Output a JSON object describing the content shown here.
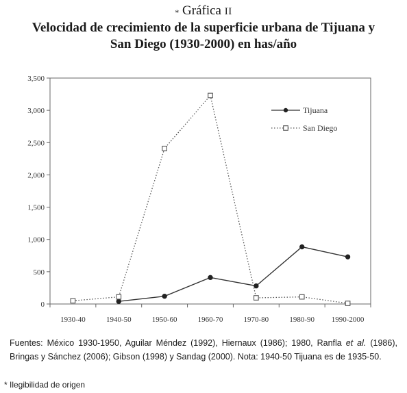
{
  "figure": {
    "mark": "*",
    "label": "Gráfica",
    "number": "II",
    "title_line1": "Velocidad de crecimiento de la superficie urbana de Tijuana y",
    "title_line2": "San Diego (1930-2000) en has/año"
  },
  "chart_data": {
    "type": "line",
    "categories": [
      "1930-40",
      "1940-50",
      "1950-60",
      "1960-70",
      "1970-80",
      "1980-90",
      "1990-2000"
    ],
    "series": [
      {
        "name": "Tijuana",
        "marker": "filled-circle",
        "line": "solid",
        "color": "#333333",
        "values": [
          null,
          40,
          120,
          410,
          280,
          885,
          730
        ]
      },
      {
        "name": "San Diego",
        "marker": "open-square",
        "line": "dotted",
        "color": "#555555",
        "values": [
          50,
          110,
          2410,
          3230,
          95,
          110,
          10
        ]
      }
    ],
    "y_ticks": [
      "0",
      "500",
      "1,000",
      "1,500",
      "2,000",
      "2,500",
      "3,000",
      "3,500"
    ],
    "ylim": [
      0,
      3500
    ],
    "grid": false,
    "legend_position": "top-right",
    "xlabel": "",
    "ylabel": ""
  },
  "notes": {
    "source_part1": "Fuentes: México 1930-1950, Aguilar Méndez (1992), Hiernaux (1986); 1980, Ranfla",
    "source_etal": "et al.",
    "source_part2": " (1986), Bringas y Sánchez (2006); Gibson (1998) y Sandag (2000). Nota: 1940-50 Tijuana es de 1935-50.",
    "footnote": "* Ilegibilidad de origen"
  }
}
